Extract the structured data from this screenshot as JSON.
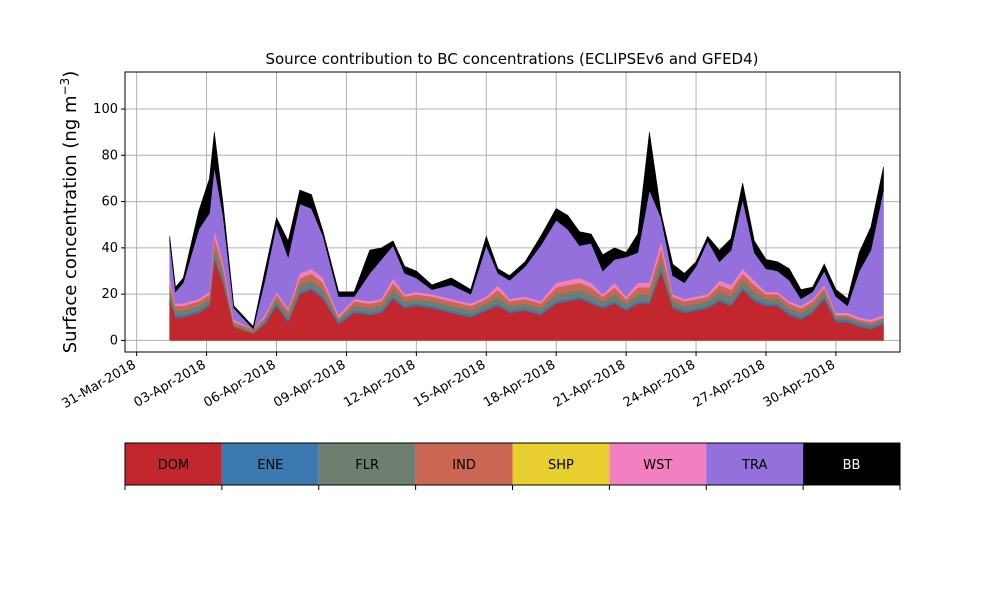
{
  "chart_data": {
    "type": "area",
    "stacked": true,
    "title": "Source contribution to BC concentrations (ECLIPSEv6 and GFED4)",
    "ylabel": "Surface concentration (ng m⁻³)",
    "ylabel_prefix": "Surface concentration (ng m",
    "ylabel_exp": "−3",
    "ylabel_suffix": ")",
    "xlabel": "",
    "grid": true,
    "ylim": [
      -5,
      116
    ],
    "xlim": [
      "2018-03-30T12:00",
      "2018-05-02T18:00"
    ],
    "yticks": [
      0,
      20,
      40,
      60,
      80,
      100
    ],
    "xticks": [
      "2018-03-31",
      "2018-04-03",
      "2018-04-06",
      "2018-04-09",
      "2018-04-12",
      "2018-04-15",
      "2018-04-18",
      "2018-04-21",
      "2018-04-24",
      "2018-04-27",
      "2018-04-30"
    ],
    "xtick_labels": [
      "31-Mar-2018",
      "03-Apr-2018",
      "06-Apr-2018",
      "09-Apr-2018",
      "12-Apr-2018",
      "15-Apr-2018",
      "18-Apr-2018",
      "21-Apr-2018",
      "24-Apr-2018",
      "27-Apr-2018",
      "30-Apr-2018"
    ],
    "x": [
      "2018-04-01T10:00",
      "2018-04-01T16:00",
      "2018-04-02T00:00",
      "2018-04-02T16:00",
      "2018-04-03T03:00",
      "2018-04-03T08:00",
      "2018-04-03T17:00",
      "2018-04-04T04:00",
      "2018-04-05T00:00",
      "2018-04-05T12:00",
      "2018-04-06T00:00",
      "2018-04-06T12:00",
      "2018-04-07T00:00",
      "2018-04-07T12:00",
      "2018-04-08T00:00",
      "2018-04-08T16:00",
      "2018-04-09T08:00",
      "2018-04-10T00:00",
      "2018-04-10T12:00",
      "2018-04-11T00:00",
      "2018-04-11T12:00",
      "2018-04-12T00:00",
      "2018-04-12T16:00",
      "2018-04-13T12:00",
      "2018-04-14T08:00",
      "2018-04-15T00:00",
      "2018-04-15T12:00",
      "2018-04-16T00:00",
      "2018-04-16T16:00",
      "2018-04-17T08:00",
      "2018-04-18T00:00",
      "2018-04-18T12:00",
      "2018-04-19T00:00",
      "2018-04-19T12:00",
      "2018-04-20T00:00",
      "2018-04-20T12:00",
      "2018-04-21T00:00",
      "2018-04-21T12:00",
      "2018-04-22T00:00",
      "2018-04-22T12:00",
      "2018-04-23T00:00",
      "2018-04-23T12:00",
      "2018-04-24T00:00",
      "2018-04-24T12:00",
      "2018-04-25T00:00",
      "2018-04-25T12:00",
      "2018-04-26T00:00",
      "2018-04-26T12:00",
      "2018-04-27T00:00",
      "2018-04-27T12:00",
      "2018-04-28T00:00",
      "2018-04-28T12:00",
      "2018-04-29T00:00",
      "2018-04-29T12:00",
      "2018-04-30T00:00",
      "2018-04-30T12:00",
      "2018-05-01T00:00",
      "2018-05-01T12:00",
      "2018-05-02T01:00"
    ],
    "series": [
      {
        "name": "DOM",
        "color": "#c1272d",
        "values": [
          18,
          10,
          10,
          12,
          15,
          35,
          25,
          6,
          3,
          7,
          15,
          8,
          20,
          22,
          18,
          7,
          12,
          11,
          12,
          18,
          14,
          15,
          14,
          12,
          10,
          13,
          15,
          12,
          13,
          11,
          16,
          17,
          18,
          16,
          14,
          16,
          13,
          16,
          16,
          30,
          14,
          12,
          13,
          14,
          17,
          15,
          22,
          17,
          15,
          15,
          11,
          9,
          12,
          18,
          8,
          8,
          6,
          5,
          7
        ]
      },
      {
        "name": "ENE",
        "color": "#3a78b0",
        "values": [
          1,
          1,
          1,
          1,
          1,
          1,
          1,
          0,
          0,
          1,
          1,
          1,
          1,
          1,
          1,
          1,
          1,
          1,
          1,
          1,
          1,
          1,
          1,
          1,
          1,
          1,
          1,
          1,
          1,
          1,
          1,
          1,
          1,
          1,
          1,
          1,
          1,
          1,
          1,
          1,
          1,
          1,
          1,
          1,
          1,
          1,
          1,
          1,
          1,
          1,
          1,
          1,
          1,
          1,
          1,
          1,
          1,
          1,
          1
        ]
      },
      {
        "name": "FLR",
        "color": "#6e7f70",
        "values": [
          3,
          2,
          2,
          2,
          2,
          4,
          3,
          1,
          1,
          1,
          2,
          2,
          3,
          3,
          3,
          1,
          2,
          2,
          2,
          3,
          2,
          2,
          2,
          2,
          2,
          2,
          3,
          2,
          2,
          2,
          3,
          3,
          3,
          3,
          2,
          3,
          2,
          3,
          3,
          4,
          2,
          2,
          2,
          2,
          3,
          3,
          3,
          3,
          2,
          2,
          2,
          2,
          2,
          2,
          1,
          1,
          1,
          1,
          1
        ]
      },
      {
        "name": "IND",
        "color": "#cc6654",
        "values": [
          3,
          2,
          2,
          2,
          2,
          5,
          3,
          1,
          1,
          1,
          2,
          2,
          3,
          3,
          3,
          1,
          2,
          2,
          2,
          3,
          2,
          2,
          2,
          2,
          2,
          2,
          3,
          2,
          2,
          2,
          3,
          3,
          3,
          3,
          2,
          3,
          2,
          3,
          3,
          5,
          2,
          2,
          2,
          2,
          3,
          3,
          3,
          3,
          2,
          2,
          2,
          2,
          2,
          2,
          1,
          1,
          1,
          1,
          1
        ]
      },
      {
        "name": "SHP",
        "color": "#e6cf2e",
        "values": [
          0,
          0,
          0,
          0,
          0,
          0,
          0,
          0,
          0,
          0,
          0,
          0,
          0,
          0,
          0,
          0,
          0,
          0,
          0,
          0,
          0,
          0,
          0,
          0,
          0,
          0,
          0,
          0,
          0,
          0,
          0,
          0,
          0,
          0,
          0,
          0,
          0,
          0,
          0,
          0,
          0,
          0,
          0,
          0,
          0,
          0,
          0,
          0,
          0,
          0,
          0,
          0,
          0,
          0,
          0,
          0,
          0,
          0,
          0
        ]
      },
      {
        "name": "WST",
        "color": "#f27fbf",
        "values": [
          2,
          1,
          1,
          1,
          1,
          3,
          2,
          1,
          0,
          1,
          1,
          1,
          2,
          2,
          2,
          1,
          1,
          1,
          1,
          2,
          1,
          1,
          1,
          1,
          1,
          1,
          2,
          1,
          1,
          1,
          2,
          2,
          2,
          2,
          1,
          2,
          1,
          2,
          2,
          3,
          1,
          1,
          1,
          1,
          2,
          2,
          2,
          2,
          1,
          1,
          1,
          1,
          1,
          1,
          1,
          1,
          1,
          1,
          1
        ]
      },
      {
        "name": "TRA",
        "color": "#9370db",
        "values": [
          16,
          5,
          9,
          30,
          34,
          27,
          20,
          5,
          0,
          15,
          29,
          22,
          30,
          26,
          18,
          8,
          1,
          12,
          17,
          14,
          9,
          6,
          2,
          6,
          4,
          22,
          5,
          8,
          13,
          24,
          27,
          22,
          14,
          17,
          10,
          10,
          17,
          13,
          40,
          10,
          8,
          7,
          13,
          23,
          8,
          15,
          30,
          12,
          10,
          9,
          9,
          3,
          3,
          6,
          7,
          3,
          20,
          30,
          54
        ]
      },
      {
        "name": "BB",
        "color": "#000000",
        "values": [
          2,
          2,
          2,
          8,
          15,
          15,
          5,
          1,
          1,
          4,
          3,
          7,
          6,
          6,
          2,
          2,
          2,
          10,
          5,
          2,
          3,
          3,
          2,
          3,
          2,
          4,
          2,
          2,
          2,
          4,
          5,
          6,
          6,
          4,
          7,
          5,
          2,
          8,
          25,
          2,
          5,
          4,
          2,
          2,
          5,
          5,
          7,
          5,
          4,
          4,
          5,
          4,
          2,
          3,
          3,
          3,
          8,
          10,
          10
        ]
      }
    ]
  }
}
